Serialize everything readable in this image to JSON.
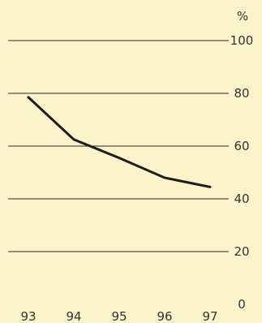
{
  "chart_data": {
    "type": "line",
    "x": [
      "93",
      "94",
      "95",
      "96",
      "97"
    ],
    "series": [
      {
        "values": [
          78.5,
          62.5,
          55.5,
          48.0,
          44.5
        ]
      }
    ],
    "y_ticks": [
      "0",
      "20",
      "40",
      "60",
      "80",
      "100"
    ],
    "y_unit": "%",
    "ylim": [
      0,
      100
    ],
    "grid": true,
    "y_axis_position": "right",
    "line_color": "#1D1D1D",
    "background_color": "#FBF3CA"
  }
}
